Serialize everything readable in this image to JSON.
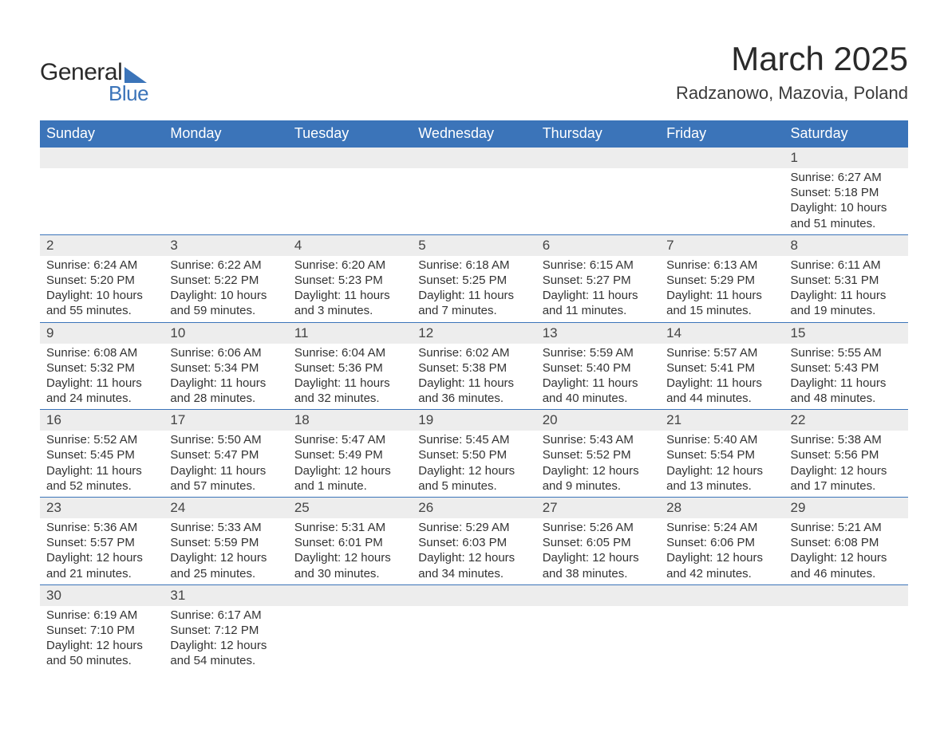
{
  "brand": {
    "line1": "General",
    "line2": "Blue"
  },
  "header": {
    "title": "March 2025",
    "location": "Radzanowo, Mazovia, Poland"
  },
  "style": {
    "accent": "#3b74b9",
    "header_bg": "#3b74b9",
    "header_text": "#ffffff",
    "daynum_bg": "#ededed",
    "body_bg": "#ffffff",
    "text": "#333333",
    "title_fontsize": 42,
    "location_fontsize": 22,
    "weekday_fontsize": 18,
    "cell_fontsize": 15
  },
  "calendar": {
    "weekdays": [
      "Sunday",
      "Monday",
      "Tuesday",
      "Wednesday",
      "Thursday",
      "Friday",
      "Saturday"
    ],
    "weeks": [
      [
        null,
        null,
        null,
        null,
        null,
        null,
        {
          "n": "1",
          "sunrise": "Sunrise: 6:27 AM",
          "sunset": "Sunset: 5:18 PM",
          "daylight": "Daylight: 10 hours and 51 minutes."
        }
      ],
      [
        {
          "n": "2",
          "sunrise": "Sunrise: 6:24 AM",
          "sunset": "Sunset: 5:20 PM",
          "daylight": "Daylight: 10 hours and 55 minutes."
        },
        {
          "n": "3",
          "sunrise": "Sunrise: 6:22 AM",
          "sunset": "Sunset: 5:22 PM",
          "daylight": "Daylight: 10 hours and 59 minutes."
        },
        {
          "n": "4",
          "sunrise": "Sunrise: 6:20 AM",
          "sunset": "Sunset: 5:23 PM",
          "daylight": "Daylight: 11 hours and 3 minutes."
        },
        {
          "n": "5",
          "sunrise": "Sunrise: 6:18 AM",
          "sunset": "Sunset: 5:25 PM",
          "daylight": "Daylight: 11 hours and 7 minutes."
        },
        {
          "n": "6",
          "sunrise": "Sunrise: 6:15 AM",
          "sunset": "Sunset: 5:27 PM",
          "daylight": "Daylight: 11 hours and 11 minutes."
        },
        {
          "n": "7",
          "sunrise": "Sunrise: 6:13 AM",
          "sunset": "Sunset: 5:29 PM",
          "daylight": "Daylight: 11 hours and 15 minutes."
        },
        {
          "n": "8",
          "sunrise": "Sunrise: 6:11 AM",
          "sunset": "Sunset: 5:31 PM",
          "daylight": "Daylight: 11 hours and 19 minutes."
        }
      ],
      [
        {
          "n": "9",
          "sunrise": "Sunrise: 6:08 AM",
          "sunset": "Sunset: 5:32 PM",
          "daylight": "Daylight: 11 hours and 24 minutes."
        },
        {
          "n": "10",
          "sunrise": "Sunrise: 6:06 AM",
          "sunset": "Sunset: 5:34 PM",
          "daylight": "Daylight: 11 hours and 28 minutes."
        },
        {
          "n": "11",
          "sunrise": "Sunrise: 6:04 AM",
          "sunset": "Sunset: 5:36 PM",
          "daylight": "Daylight: 11 hours and 32 minutes."
        },
        {
          "n": "12",
          "sunrise": "Sunrise: 6:02 AM",
          "sunset": "Sunset: 5:38 PM",
          "daylight": "Daylight: 11 hours and 36 minutes."
        },
        {
          "n": "13",
          "sunrise": "Sunrise: 5:59 AM",
          "sunset": "Sunset: 5:40 PM",
          "daylight": "Daylight: 11 hours and 40 minutes."
        },
        {
          "n": "14",
          "sunrise": "Sunrise: 5:57 AM",
          "sunset": "Sunset: 5:41 PM",
          "daylight": "Daylight: 11 hours and 44 minutes."
        },
        {
          "n": "15",
          "sunrise": "Sunrise: 5:55 AM",
          "sunset": "Sunset: 5:43 PM",
          "daylight": "Daylight: 11 hours and 48 minutes."
        }
      ],
      [
        {
          "n": "16",
          "sunrise": "Sunrise: 5:52 AM",
          "sunset": "Sunset: 5:45 PM",
          "daylight": "Daylight: 11 hours and 52 minutes."
        },
        {
          "n": "17",
          "sunrise": "Sunrise: 5:50 AM",
          "sunset": "Sunset: 5:47 PM",
          "daylight": "Daylight: 11 hours and 57 minutes."
        },
        {
          "n": "18",
          "sunrise": "Sunrise: 5:47 AM",
          "sunset": "Sunset: 5:49 PM",
          "daylight": "Daylight: 12 hours and 1 minute."
        },
        {
          "n": "19",
          "sunrise": "Sunrise: 5:45 AM",
          "sunset": "Sunset: 5:50 PM",
          "daylight": "Daylight: 12 hours and 5 minutes."
        },
        {
          "n": "20",
          "sunrise": "Sunrise: 5:43 AM",
          "sunset": "Sunset: 5:52 PM",
          "daylight": "Daylight: 12 hours and 9 minutes."
        },
        {
          "n": "21",
          "sunrise": "Sunrise: 5:40 AM",
          "sunset": "Sunset: 5:54 PM",
          "daylight": "Daylight: 12 hours and 13 minutes."
        },
        {
          "n": "22",
          "sunrise": "Sunrise: 5:38 AM",
          "sunset": "Sunset: 5:56 PM",
          "daylight": "Daylight: 12 hours and 17 minutes."
        }
      ],
      [
        {
          "n": "23",
          "sunrise": "Sunrise: 5:36 AM",
          "sunset": "Sunset: 5:57 PM",
          "daylight": "Daylight: 12 hours and 21 minutes."
        },
        {
          "n": "24",
          "sunrise": "Sunrise: 5:33 AM",
          "sunset": "Sunset: 5:59 PM",
          "daylight": "Daylight: 12 hours and 25 minutes."
        },
        {
          "n": "25",
          "sunrise": "Sunrise: 5:31 AM",
          "sunset": "Sunset: 6:01 PM",
          "daylight": "Daylight: 12 hours and 30 minutes."
        },
        {
          "n": "26",
          "sunrise": "Sunrise: 5:29 AM",
          "sunset": "Sunset: 6:03 PM",
          "daylight": "Daylight: 12 hours and 34 minutes."
        },
        {
          "n": "27",
          "sunrise": "Sunrise: 5:26 AM",
          "sunset": "Sunset: 6:05 PM",
          "daylight": "Daylight: 12 hours and 38 minutes."
        },
        {
          "n": "28",
          "sunrise": "Sunrise: 5:24 AM",
          "sunset": "Sunset: 6:06 PM",
          "daylight": "Daylight: 12 hours and 42 minutes."
        },
        {
          "n": "29",
          "sunrise": "Sunrise: 5:21 AM",
          "sunset": "Sunset: 6:08 PM",
          "daylight": "Daylight: 12 hours and 46 minutes."
        }
      ],
      [
        {
          "n": "30",
          "sunrise": "Sunrise: 6:19 AM",
          "sunset": "Sunset: 7:10 PM",
          "daylight": "Daylight: 12 hours and 50 minutes."
        },
        {
          "n": "31",
          "sunrise": "Sunrise: 6:17 AM",
          "sunset": "Sunset: 7:12 PM",
          "daylight": "Daylight: 12 hours and 54 minutes."
        },
        null,
        null,
        null,
        null,
        null
      ]
    ]
  }
}
